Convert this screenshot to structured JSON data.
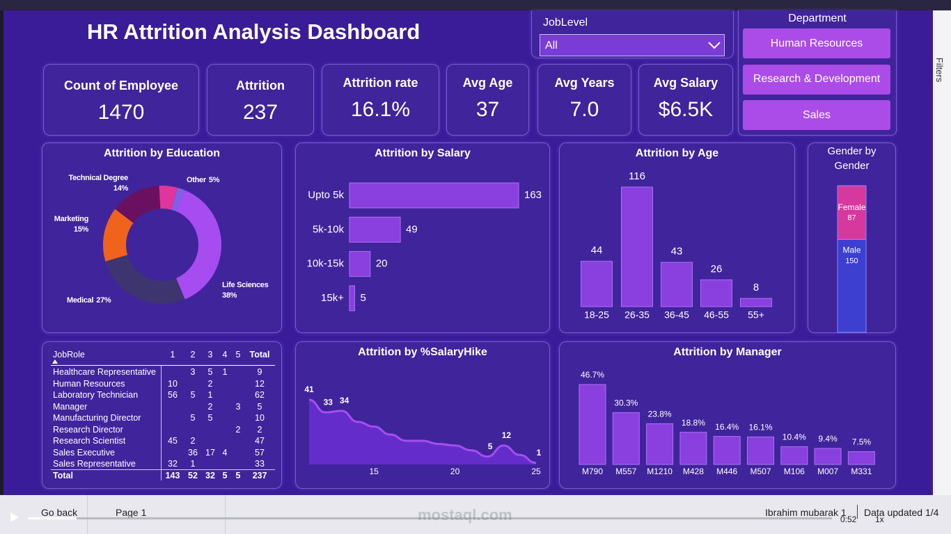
{
  "header": {
    "title": "HR Attrition Analysis Dashboard"
  },
  "filters": {
    "job_level": {
      "label": "JobLevel",
      "value": "All"
    },
    "department": {
      "label": "Department",
      "options": [
        "Human Resources",
        "Research & Development",
        "Sales"
      ]
    },
    "pane": "Filters"
  },
  "kpis": [
    {
      "label": "Count of Employee",
      "value": 1470
    },
    {
      "label": "Attrition",
      "value": 237
    },
    {
      "label": "Attrition rate",
      "value": "16.1%"
    },
    {
      "label": "Avg Age",
      "value": 37
    },
    {
      "label": "Avg Years",
      "value": "7.0"
    },
    {
      "label": "Avg Salary",
      "value": "$6.5K"
    }
  ],
  "chart_data": [
    {
      "type": "donut",
      "title": "Attrition by Education",
      "categories": [
        "Life Sciences",
        "Medical",
        "Marketing",
        "Technical Degree",
        "Other",
        null
      ],
      "values": [
        38,
        27,
        15,
        14,
        5,
        2
      ],
      "value_labels": [
        "38%",
        "27%",
        "15%",
        "14%",
        "5%",
        null
      ],
      "colors": [
        "#a64cf0",
        "#3d3470",
        "#f0631c",
        "#6a1060",
        "#e0359c",
        "#7c63e6"
      ]
    },
    {
      "type": "bar",
      "horizontal": true,
      "title": "Attrition by Salary",
      "categories": [
        "Upto 5k",
        "5k-10k",
        "10k-15k",
        "15k+"
      ],
      "values": [
        163,
        49,
        20,
        5
      ],
      "color": "#8a3fdf"
    },
    {
      "type": "bar",
      "title": "Attrition by Age",
      "categories": [
        "18-25",
        "26-35",
        "36-45",
        "46-55",
        "55+"
      ],
      "values": [
        44,
        116,
        43,
        26,
        8
      ],
      "color": "#8a3fdf"
    },
    {
      "type": "stacked_bar",
      "title": "Gender by Gender",
      "categories": [
        null
      ],
      "series": [
        {
          "name": "Male",
          "color": "#3c3fcf",
          "values": [
            150
          ]
        },
        {
          "name": "Female",
          "color": "#d6389e",
          "values": [
            87
          ]
        }
      ]
    },
    {
      "type": "area",
      "title": "Attrition by %SalaryHike",
      "x": [
        11,
        12,
        13,
        14,
        15,
        16,
        17,
        18,
        19,
        20,
        21,
        22,
        23,
        24,
        25
      ],
      "values": [
        41,
        33,
        34,
        27,
        24,
        19,
        15,
        15,
        13,
        12,
        9,
        5,
        12,
        6,
        1
      ],
      "value_labels": [
        "41",
        "33",
        "34",
        null,
        null,
        null,
        null,
        null,
        null,
        null,
        null,
        "5",
        "12",
        null,
        "1"
      ],
      "xlim": [
        11,
        25
      ],
      "xticks": [
        15,
        20,
        25
      ],
      "color": "#a44fee"
    },
    {
      "type": "bar",
      "title": "Attrition by Manager",
      "categories": [
        "M790",
        "M557",
        "M1210",
        "M428",
        "M446",
        "M507",
        "M106",
        "M007",
        "M331"
      ],
      "values": [
        46.7,
        30.3,
        23.8,
        18.8,
        16.4,
        16.1,
        10.4,
        9.4,
        7.5
      ],
      "value_labels": [
        "46.7%",
        "30.3%",
        "23.8%",
        "18.8%",
        "16.4%",
        "16.1%",
        "10.4%",
        "9.4%",
        "7.5%"
      ],
      "color": "#8a3fdf"
    }
  ],
  "table": {
    "header": [
      "JobRole",
      "1",
      "2",
      "3",
      "4",
      "5",
      "Total"
    ],
    "rows": [
      [
        "Healthcare Representative",
        null,
        3,
        5,
        1,
        null,
        9
      ],
      [
        "Human Resources",
        10,
        null,
        2,
        null,
        null,
        12
      ],
      [
        "Laboratory Technician",
        56,
        5,
        1,
        null,
        null,
        62
      ],
      [
        "Manager",
        null,
        null,
        2,
        null,
        3,
        5
      ],
      [
        "Manufacturing Director",
        null,
        5,
        5,
        null,
        null,
        10
      ],
      [
        "Research Director",
        null,
        null,
        null,
        null,
        2,
        2
      ],
      [
        "Research Scientist",
        45,
        2,
        null,
        null,
        null,
        47
      ],
      [
        "Sales Executive",
        null,
        36,
        17,
        4,
        null,
        57
      ],
      [
        "Sales Representative",
        32,
        1,
        null,
        null,
        null,
        33
      ],
      [
        "Total",
        143,
        52,
        32,
        5,
        5,
        237
      ]
    ]
  },
  "footer": {
    "back": "Go back",
    "page": "Page 1",
    "author": "Ibrahim mubarak 1",
    "updated": "Data updated 1/4",
    "time": "0:52",
    "speed": "1x"
  },
  "watermark": "mostaql.com"
}
